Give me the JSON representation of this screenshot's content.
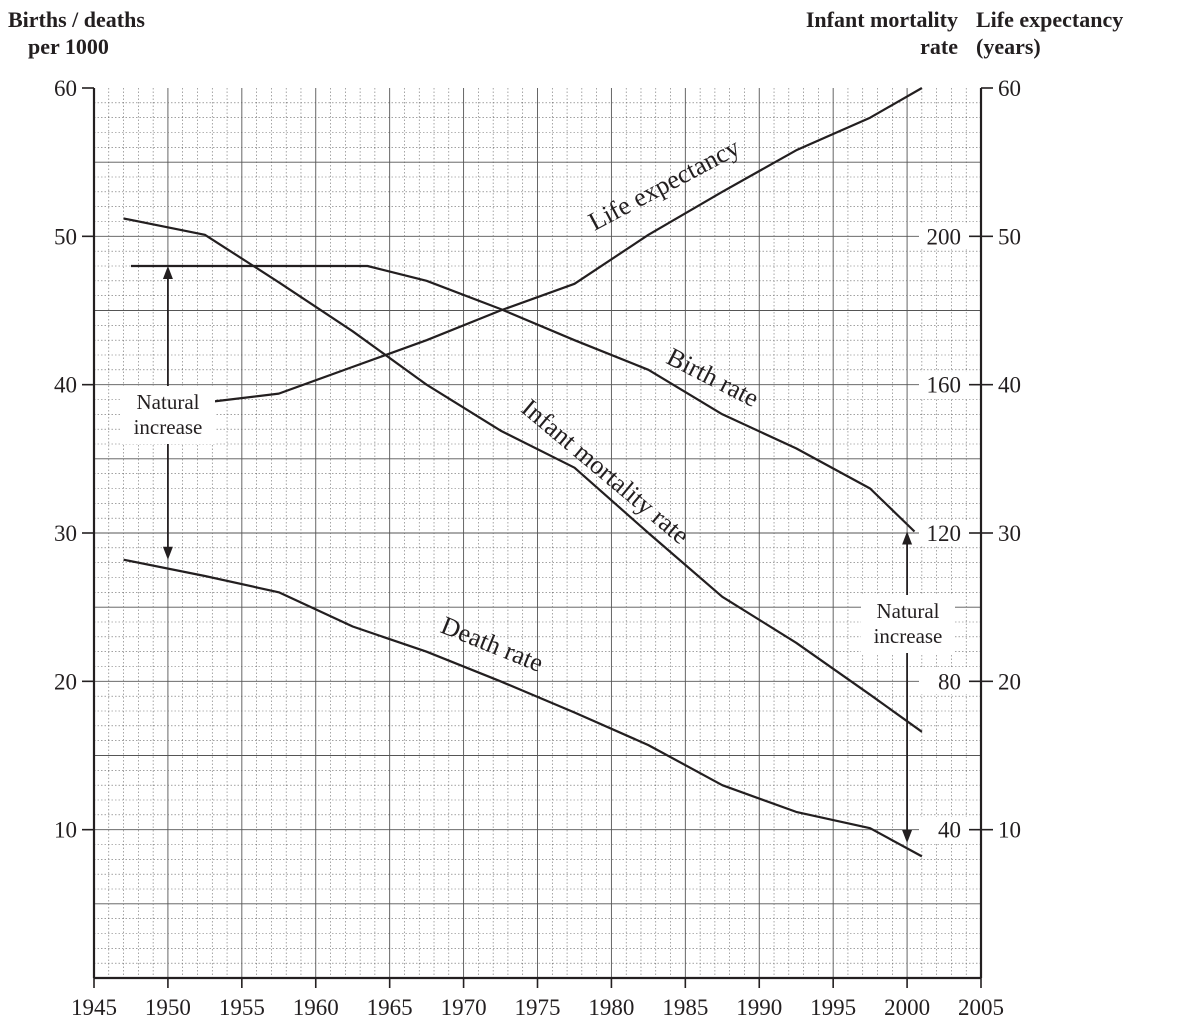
{
  "chart_data": {
    "type": "line",
    "title": "",
    "x_axis": {
      "ticks": [
        1945,
        1950,
        1955,
        1960,
        1965,
        1970,
        1975,
        1980,
        1985,
        1990,
        1995,
        2000,
        2005
      ],
      "range": [
        1945,
        2005
      ],
      "label": ""
    },
    "y_axes": {
      "left": {
        "label_line1": "Births / deaths",
        "label_line2": "per 1000",
        "range": [
          0,
          60
        ],
        "ticks": [
          10,
          20,
          30,
          40,
          50,
          60
        ]
      },
      "inner_right": {
        "label_line1": "Infant mortality",
        "label_line2": "rate",
        "range": [
          0,
          240
        ],
        "ticks": [
          40,
          80,
          120,
          160,
          200
        ]
      },
      "right": {
        "label_line1": "Life expectancy",
        "label_line2": "(years)",
        "range": [
          0,
          60
        ],
        "ticks": [
          10,
          20,
          30,
          40,
          50,
          60
        ]
      }
    },
    "grid": true,
    "series": [
      {
        "name": "Birth rate",
        "axis": "left",
        "x": [
          1947.5,
          1963.5,
          1967.5,
          1972.5,
          1977.5,
          1982.5,
          1987.5,
          1992.5,
          1997.5,
          2000.5
        ],
        "y": [
          48,
          48,
          47,
          45.1,
          43,
          41,
          38,
          35.7,
          33,
          30.1
        ]
      },
      {
        "name": "Death rate",
        "axis": "left",
        "x": [
          1947,
          1952.5,
          1957.5,
          1962.5,
          1967.5,
          1972.5,
          1977.5,
          1982.5,
          1987.5,
          1992.5,
          1997.5,
          2001
        ],
        "y": [
          28.2,
          27.1,
          26,
          23.7,
          22,
          20,
          17.9,
          15.7,
          13,
          11.2,
          10.1,
          8.2
        ]
      },
      {
        "name": "Infant mortality rate",
        "axis": "inner_right",
        "x": [
          1947,
          1952.5,
          1957.5,
          1962.5,
          1967.5,
          1972.5,
          1977.5,
          1982.5,
          1987.5,
          1992.5,
          1997.5,
          2001
        ],
        "y": [
          204.8,
          200.4,
          187.6,
          174.4,
          160,
          147.6,
          137.6,
          120,
          102.8,
          90.4,
          76.4,
          66.4
        ]
      },
      {
        "name": "Life expectancy",
        "axis": "right",
        "x": [
          1947.5,
          1952.5,
          1957.5,
          1962.5,
          1967.5,
          1972.5,
          1977.5,
          1982.5,
          1987.5,
          1992.5,
          1997.5,
          2001
        ],
        "y": [
          38.3,
          38.8,
          39.4,
          41.2,
          43,
          45,
          46.8,
          50.1,
          53,
          55.8,
          58,
          60
        ]
      }
    ],
    "annotations": [
      {
        "line1": "Natural",
        "line2": "increase",
        "x": 1950,
        "from": 48,
        "to": 28.2
      },
      {
        "line1": "Natural",
        "line2": "increase",
        "x": 2000,
        "from": 30.1,
        "to": 9.1
      }
    ]
  }
}
